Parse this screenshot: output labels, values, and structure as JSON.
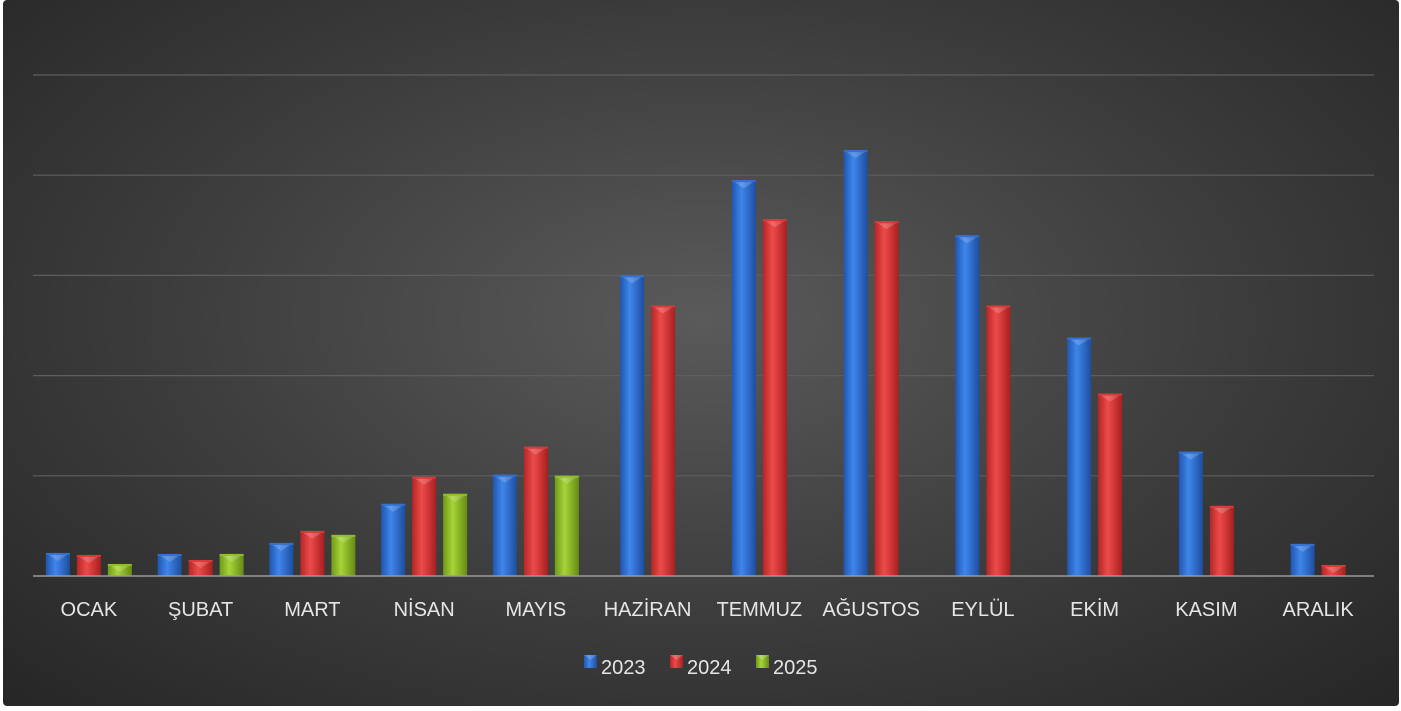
{
  "colors": {
    "series_2023": "#2f6fd4",
    "series_2024": "#d93636",
    "series_2025": "#8fbf26",
    "gridline": "#5e5e5e",
    "axis": "#9a9a9a",
    "text": "#e6e6e6"
  },
  "chart_data": {
    "type": "bar",
    "categories": [
      "OCAK",
      "ŞUBAT",
      "MART",
      "NİSAN",
      "MAYIS",
      "HAZİRAN",
      "TEMMUZ",
      "AĞUSTOS",
      "EYLÜL",
      "EKİM",
      "KASIM",
      "ARALIK"
    ],
    "series": [
      {
        "name": "2023",
        "values": [
          0.23,
          0.22,
          0.33,
          0.72,
          1.01,
          3.0,
          3.95,
          4.25,
          3.4,
          2.38,
          1.24,
          0.32
        ]
      },
      {
        "name": "2024",
        "values": [
          0.21,
          0.16,
          0.45,
          0.99,
          1.29,
          2.7,
          3.56,
          3.54,
          2.7,
          1.82,
          0.7,
          0.11
        ]
      },
      {
        "name": "2025",
        "values": [
          0.12,
          0.22,
          0.41,
          0.82,
          1.0,
          null,
          null,
          null,
          null,
          null,
          null,
          null
        ]
      }
    ],
    "ylim": [
      0,
      5
    ],
    "gridlines": 5,
    "grid": true,
    "legend_position": "bottom"
  }
}
